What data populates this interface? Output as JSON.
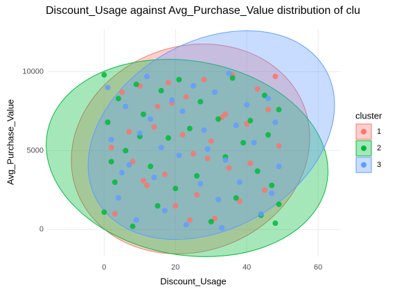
{
  "chart_data": {
    "type": "scatter",
    "title": "Discount_Usage against Avg_Purchase_Value distribution of clu",
    "x_label": "Discount_Usage",
    "y_label": "Avg_Purchase_Value",
    "legend_title": "cluster",
    "xlim": [
      -16,
      66
    ],
    "ylim": [
      -1700,
      12700
    ],
    "xticks": [
      0,
      20,
      40,
      60
    ],
    "yticks": [
      0,
      5000,
      10000
    ],
    "grid": true,
    "series": [
      {
        "name": "1",
        "color": "#F8766D",
        "x": [
          2,
          5,
          8,
          10,
          12,
          14,
          15,
          17,
          18,
          20,
          22,
          23,
          25,
          26,
          28,
          30,
          31,
          33,
          35,
          36,
          38,
          40,
          41,
          43,
          45,
          46,
          48,
          49,
          3,
          7,
          11,
          19,
          24,
          29,
          34
        ],
        "values": [
          5200,
          8700,
          4300,
          9100,
          2800,
          6500,
          7800,
          3500,
          9300,
          1500,
          6000,
          8400,
          4800,
          2200,
          9500,
          5600,
          700,
          7100,
          3900,
          9800,
          1800,
          6700,
          4200,
          8900,
          2500,
          7600,
          9700,
          5300,
          1000,
          6200,
          3100,
          8000,
          600,
          4500,
          7300
        ]
      },
      {
        "name": "2",
        "color": "#00BA38",
        "x": [
          0,
          0,
          1,
          3,
          4,
          6,
          8,
          9,
          11,
          13,
          15,
          16,
          18,
          20,
          21,
          24,
          26,
          27,
          30,
          32,
          34,
          36,
          37,
          39,
          41,
          43,
          44,
          45,
          46,
          47,
          48,
          49,
          49,
          2,
          10
        ],
        "values": [
          9800,
          1100,
          6800,
          3000,
          8300,
          5000,
          200,
          9200,
          7300,
          4000,
          1500,
          8800,
          5800,
          2600,
          9500,
          6400,
          3400,
          8100,
          500,
          7000,
          4600,
          9600,
          2000,
          5500,
          6900,
          3700,
          900,
          8500,
          6000,
          2800,
          400,
          7600,
          1600,
          4300,
          5900
        ]
      },
      {
        "name": "3",
        "color": "#619CFF",
        "x": [
          1,
          2,
          4,
          6,
          7,
          9,
          10,
          12,
          14,
          16,
          17,
          19,
          21,
          22,
          23,
          25,
          27,
          28,
          29,
          31,
          32,
          34,
          35,
          37,
          38,
          40,
          42,
          44,
          46,
          47,
          48,
          49,
          5,
          13,
          33
        ],
        "values": [
          9000,
          5700,
          2000,
          7800,
          4100,
          600,
          6100,
          9700,
          3300,
          5200,
          1200,
          8200,
          4700,
          7500,
          300,
          9100,
          2900,
          6300,
          5100,
          8700,
          1900,
          4400,
          9900,
          6600,
          3000,
          7900,
          5500,
          1000,
          8300,
          2300,
          6800,
          4000,
          3600,
          7000,
          100
        ]
      }
    ]
  }
}
